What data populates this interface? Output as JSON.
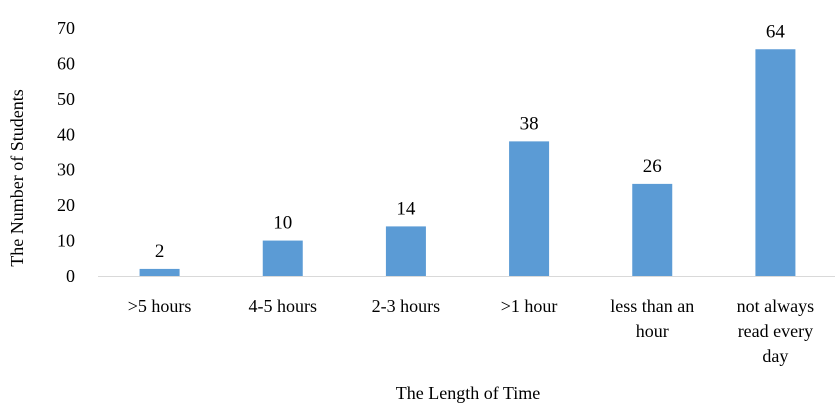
{
  "chart_data": {
    "type": "bar",
    "categories": [
      [
        ">5 hours"
      ],
      [
        "4-5 hours"
      ],
      [
        "2-3 hours"
      ],
      [
        ">1 hour"
      ],
      [
        "less than an",
        "hour"
      ],
      [
        "not always",
        "read every",
        "day"
      ]
    ],
    "values": [
      2,
      10,
      14,
      38,
      26,
      64
    ],
    "xlabel": "The Length of Time",
    "ylabel": "The Number of Students",
    "ylim": [
      0,
      70
    ],
    "yticks": [
      0,
      10,
      20,
      30,
      40,
      50,
      60,
      70
    ],
    "grid": false,
    "legend": "none",
    "bar_color": "#5B9BD5",
    "axis_color": "#D9D9D9"
  }
}
